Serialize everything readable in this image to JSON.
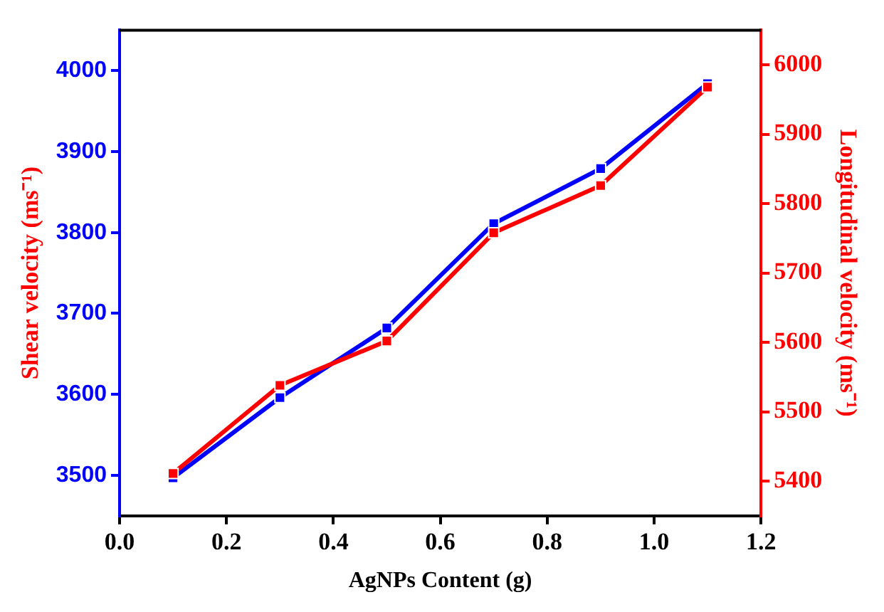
{
  "chart_data": {
    "type": "line",
    "xlabel": "AgNPs Content (g)",
    "ylabel": "Shear velocity (ms⁻¹)",
    "y2label": "Longitudinal velocity (ms⁻¹)",
    "x": [
      0.1,
      0.3,
      0.5,
      0.7,
      0.9,
      1.1
    ],
    "series": [
      {
        "color": "#0000ff",
        "values": [
          3497,
          3596,
          3682,
          3811,
          3879,
          3984
        ]
      },
      {
        "color": "#ff0000",
        "axis": "y2",
        "values": [
          5411,
          5538,
          5602,
          5758,
          5826,
          5968
        ]
      }
    ],
    "xlim": [
      0,
      1.2
    ],
    "xticks": [
      {
        "value": 0,
        "label": "0.0"
      },
      {
        "value": 0.2,
        "label": "0.2"
      },
      {
        "value": 0.4,
        "label": "0.4"
      },
      {
        "value": 0.6,
        "label": "0.6"
      },
      {
        "value": 0.8,
        "label": "0.8"
      },
      {
        "value": 1,
        "label": "1.0"
      },
      {
        "value": 1.2,
        "label": "1.2"
      }
    ],
    "ylim": [
      3450,
      4050
    ],
    "yticks": [
      3500,
      3600,
      3700,
      3800,
      3900,
      4000
    ],
    "y2lim": [
      5350,
      6050
    ],
    "y2ticks": [
      5400,
      5500,
      5600,
      5700,
      5800,
      5900,
      6000
    ],
    "grid": false,
    "legend": false,
    "marker": "square",
    "line_style": "solid"
  }
}
